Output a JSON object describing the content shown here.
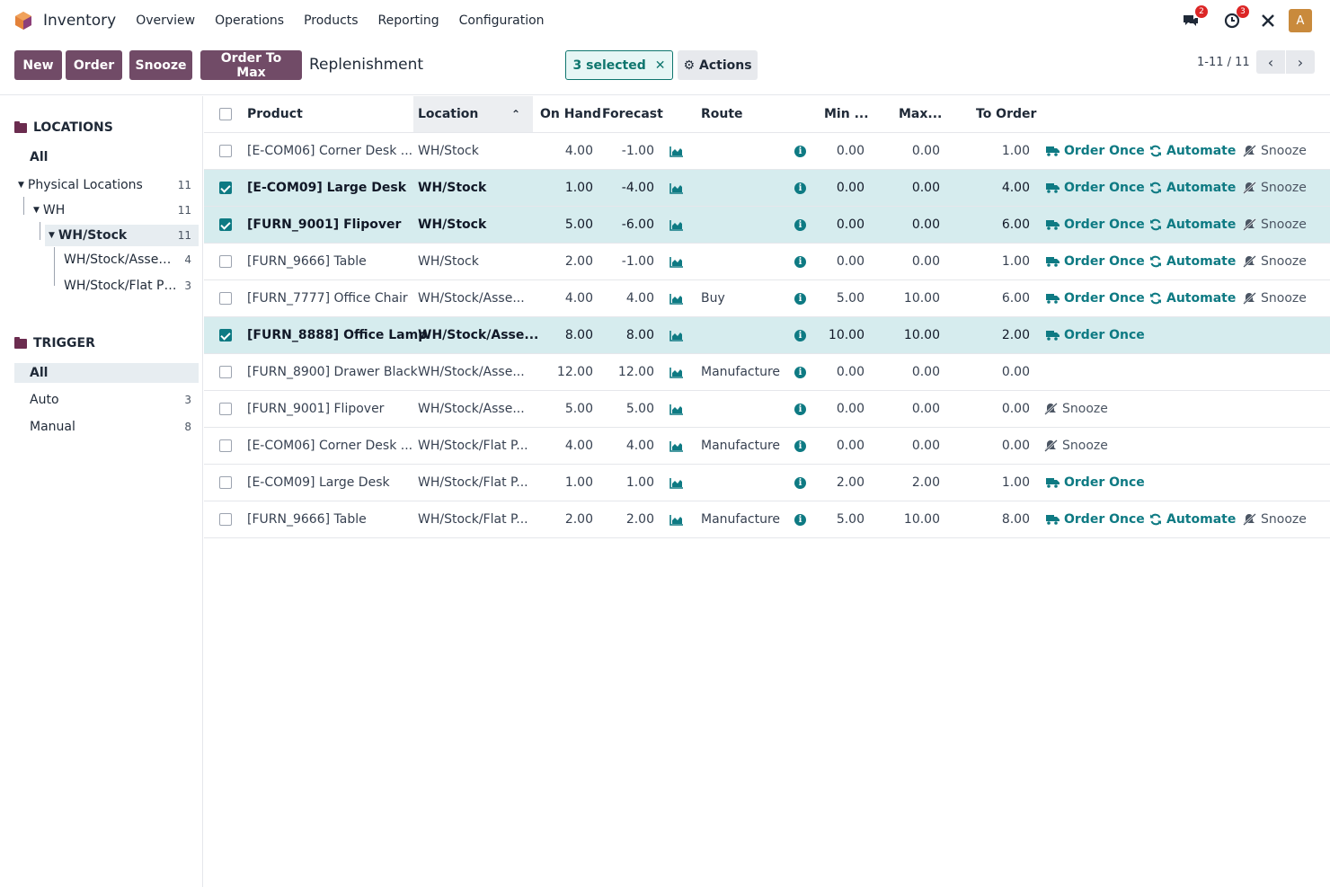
{
  "app": {
    "name": "Inventory",
    "brand_color": "#714b67",
    "accent": "#0e7a83"
  },
  "nav": [
    "Overview",
    "Operations",
    "Products",
    "Reporting",
    "Configuration"
  ],
  "systray": {
    "messages_badge": "2",
    "activity_badge": "3",
    "avatar": "A",
    "icons": [
      "chat-icon",
      "clock-icon",
      "tools-icon"
    ]
  },
  "toolbar": {
    "new": "New",
    "order": "Order",
    "snooze": "Snooze",
    "order_to_max": "Order To Max",
    "title": "Replenishment",
    "selected": "3 selected",
    "actions": "Actions"
  },
  "pager": {
    "text": "1-11 / 11"
  },
  "sidebar": {
    "locations_title": "LOCATIONS",
    "all": "All",
    "tree": [
      {
        "label": "Physical Locations",
        "count": "11"
      },
      {
        "label": "WH",
        "count": "11"
      },
      {
        "label": "WH/Stock",
        "count": "11"
      },
      {
        "label": "WH/Stock/Asse…",
        "count": "4"
      },
      {
        "label": "WH/Stock/Flat P…",
        "count": "3"
      }
    ],
    "trigger_title": "TRIGGER",
    "trigger_all": "All",
    "triggers": [
      {
        "label": "Auto",
        "count": "3"
      },
      {
        "label": "Manual",
        "count": "8"
      }
    ]
  },
  "columns": {
    "product": "Product",
    "location": "Location",
    "on_hand": "On Hand",
    "forecast": "Forecast",
    "route": "Route",
    "min": "Min ...",
    "max": "Max...",
    "to_order": "To Order"
  },
  "labels": {
    "order_once": "Order Once",
    "automate": "Automate",
    "snooze": "Snooze"
  },
  "rows": [
    {
      "product": "[E-COM06] Corner Desk ...",
      "location": "WH/Stock",
      "on_hand": "4.00",
      "forecast": "-1.00",
      "route": "",
      "min": "0.00",
      "max": "0.00",
      "to_order": "1.00",
      "selected": false,
      "actions": "all"
    },
    {
      "product": "[E-COM09] Large Desk",
      "location": "WH/Stock",
      "on_hand": "1.00",
      "forecast": "-4.00",
      "route": "",
      "min": "0.00",
      "max": "0.00",
      "to_order": "4.00",
      "selected": true,
      "actions": "all"
    },
    {
      "product": "[FURN_9001] Flipover",
      "location": "WH/Stock",
      "on_hand": "5.00",
      "forecast": "-6.00",
      "route": "",
      "min": "0.00",
      "max": "0.00",
      "to_order": "6.00",
      "selected": true,
      "actions": "all"
    },
    {
      "product": "[FURN_9666] Table",
      "location": "WH/Stock",
      "on_hand": "2.00",
      "forecast": "-1.00",
      "route": "",
      "min": "0.00",
      "max": "0.00",
      "to_order": "1.00",
      "selected": false,
      "actions": "all"
    },
    {
      "product": "[FURN_7777] Office Chair",
      "location": "WH/Stock/Asse...",
      "on_hand": "4.00",
      "forecast": "4.00",
      "route": "Buy",
      "min": "5.00",
      "max": "10.00",
      "to_order": "6.00",
      "selected": false,
      "actions": "all"
    },
    {
      "product": "[FURN_8888] Office Lamp",
      "location": "WH/Stock/Asse...",
      "on_hand": "8.00",
      "forecast": "8.00",
      "route": "",
      "min": "10.00",
      "max": "10.00",
      "to_order": "2.00",
      "selected": true,
      "actions": "order"
    },
    {
      "product": "[FURN_8900] Drawer Black",
      "location": "WH/Stock/Asse...",
      "on_hand": "12.00",
      "forecast": "12.00",
      "route": "Manufacture",
      "min": "0.00",
      "max": "0.00",
      "to_order": "0.00",
      "selected": false,
      "actions": "none"
    },
    {
      "product": "[FURN_9001] Flipover",
      "location": "WH/Stock/Asse...",
      "on_hand": "5.00",
      "forecast": "5.00",
      "route": "",
      "min": "0.00",
      "max": "0.00",
      "to_order": "0.00",
      "selected": false,
      "actions": "snooze"
    },
    {
      "product": "[E-COM06] Corner Desk ...",
      "location": "WH/Stock/Flat P...",
      "on_hand": "4.00",
      "forecast": "4.00",
      "route": "Manufacture",
      "min": "0.00",
      "max": "0.00",
      "to_order": "0.00",
      "selected": false,
      "actions": "snooze"
    },
    {
      "product": "[E-COM09] Large Desk",
      "location": "WH/Stock/Flat P...",
      "on_hand": "1.00",
      "forecast": "1.00",
      "route": "",
      "min": "2.00",
      "max": "2.00",
      "to_order": "1.00",
      "selected": false,
      "actions": "order"
    },
    {
      "product": "[FURN_9666] Table",
      "location": "WH/Stock/Flat P...",
      "on_hand": "2.00",
      "forecast": "2.00",
      "route": "Manufacture",
      "min": "5.00",
      "max": "10.00",
      "to_order": "8.00",
      "selected": false,
      "actions": "all"
    }
  ]
}
